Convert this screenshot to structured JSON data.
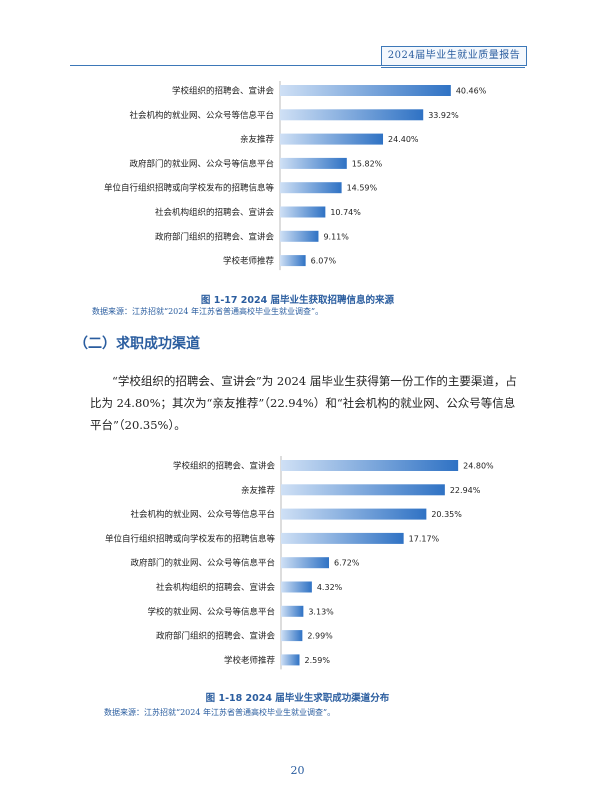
{
  "header": {
    "title": "2024届毕业生就业质量报告"
  },
  "chart_data": [
    {
      "type": "bar",
      "orientation": "horizontal",
      "categories": [
        "学校组织的招聘会、宣讲会",
        "社会机构的就业网、公众号等信息平台",
        "亲友推荐",
        "政府部门的就业网、公众号等信息平台",
        "单位自行组织招聘或向学校发布的招聘信息等",
        "社会机构组织的招聘会、宣讲会",
        "政府部门组织的招聘会、宣讲会",
        "学校老师推荐"
      ],
      "values": [
        40.46,
        33.92,
        24.4,
        15.82,
        14.59,
        10.74,
        9.11,
        6.07
      ],
      "value_labels": [
        "40.46%",
        "33.92%",
        "24.40%",
        "15.82%",
        "14.59%",
        "10.74%",
        "9.11%",
        "6.07%"
      ],
      "xlim": [
        0,
        45
      ],
      "bar_color": "#2f72c4"
    },
    {
      "type": "bar",
      "orientation": "horizontal",
      "categories": [
        "学校组织的招聘会、宣讲会",
        "亲友推荐",
        "社会机构的就业网、公众号等信息平台",
        "单位自行组织招聘或向学校发布的招聘信息等",
        "政府部门的就业网、公众号等信息平台",
        "社会机构组织的招聘会、宣讲会",
        "学校的就业网、公众号等信息平台",
        "政府部门组织的招聘会、宣讲会",
        "学校老师推荐"
      ],
      "values": [
        24.8,
        22.94,
        20.35,
        17.17,
        6.72,
        4.32,
        3.13,
        2.99,
        2.59
      ],
      "value_labels": [
        "24.80%",
        "22.94%",
        "20.35%",
        "17.17%",
        "6.72%",
        "4.32%",
        "3.13%",
        "2.99%",
        "2.59%"
      ],
      "xlim": [
        0,
        28
      ],
      "bar_color": "#2f72c4"
    }
  ],
  "figure1": {
    "caption": "图 1-17 2024 届毕业生获取招聘信息的来源",
    "source": "数据来源：江苏招就“2024 年江苏省普通高校毕业生就业调查”。"
  },
  "section": {
    "title": "（二）求职成功渠道"
  },
  "paragraph": {
    "text": "“学校组织的招聘会、宣讲会”为 2024 届毕业生获得第一份工作的主要渠道，占比为 24.80%；其次为“亲友推荐”（22.94%）和“社会机构的就业网、公众号等信息平台”（20.35%）。"
  },
  "figure2": {
    "caption": "图 1-18 2024 届毕业生求职成功渠道分布",
    "source": "数据来源：江苏招就“2024 年江苏省普通高校毕业生就业调查”。"
  },
  "page_number": "20"
}
